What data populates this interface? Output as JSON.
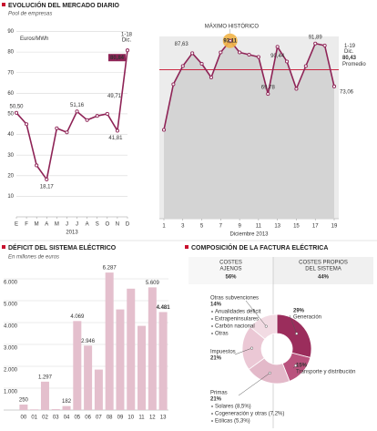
{
  "chart_data": [
    {
      "type": "line",
      "title": "EVOLUCIÓN DEL MERCADO DIARIO",
      "subtitle": "Pool de empresas",
      "ylabel": "Euros/MWh",
      "xlabel": "2013",
      "categories": [
        "E",
        "F",
        "M",
        "A",
        "M",
        "J",
        "J",
        "A",
        "S",
        "O",
        "N",
        "D"
      ],
      "values": [
        50.5,
        45,
        25,
        18.17,
        43,
        41,
        51.16,
        47,
        49,
        50,
        41.81,
        80.84
      ],
      "value_labels": [
        "50,50",
        null,
        null,
        "18,17",
        null,
        null,
        "51,16",
        null,
        null,
        null,
        "41,81",
        "80,84"
      ],
      "color": "#8e2356",
      "ylim": [
        0,
        92
      ],
      "yticks": [
        10,
        20,
        30,
        40,
        50,
        60,
        70,
        80,
        90
      ],
      "grid": true,
      "note": [
        "1-18",
        "Dic."
      ],
      "average": {
        "value": 49.71,
        "label": "49,71"
      }
    },
    {
      "type": "line",
      "xlabel": "Diciembre 2013",
      "x": [
        1,
        2,
        3,
        4,
        5,
        6,
        7,
        8,
        9,
        10,
        11,
        12,
        13,
        14,
        15,
        16,
        17,
        18,
        19
      ],
      "values": [
        54,
        74,
        82,
        87.63,
        83,
        77,
        88,
        93.11,
        88,
        87,
        86,
        69.78,
        90.44,
        84,
        72,
        82,
        91.89,
        91,
        73.06
      ],
      "value_labels": [
        null,
        null,
        null,
        "87,63",
        null,
        null,
        null,
        "93,11",
        null,
        null,
        null,
        "69,78",
        "90,44",
        null,
        null,
        null,
        "91,89",
        null,
        "73,06"
      ],
      "color": "#8e2356",
      "area": true,
      "xlim": [
        1,
        19
      ],
      "ylim": [
        15,
        95
      ],
      "xticks": [
        1,
        3,
        5,
        7,
        9,
        11,
        13,
        15,
        17,
        19
      ],
      "highlight": {
        "index": 7,
        "label": "MÁXIMO HISTÓRICO",
        "color": "#f2b447"
      },
      "average": {
        "value": 80.43,
        "label": "80,43",
        "note": [
          "1-19",
          "Dic."
        ],
        "name": "Promedio",
        "color": "#c8102e"
      }
    },
    {
      "type": "bar",
      "title": "DÉFICIT DEL SISTEMA ELÉCTRICO",
      "subtitle": "En millones de euros",
      "categories": [
        "00",
        "01",
        "02",
        "03",
        "04",
        "05",
        "06",
        "07",
        "08",
        "09",
        "10",
        "11",
        "12",
        "13"
      ],
      "values": [
        250,
        30,
        1297,
        40,
        182,
        4069,
        2946,
        1850,
        6287,
        4600,
        5550,
        3850,
        5609,
        4481
      ],
      "value_labels": [
        "250",
        null,
        "1.297",
        null,
        "182",
        "4.069",
        "2.946",
        null,
        "6.287",
        null,
        null,
        null,
        "5.609",
        "4.481"
      ],
      "color": "#e4bfcd",
      "ylim": [
        0,
        6400
      ],
      "yticks": [
        {
          "value": 1000,
          "label": "1.000"
        },
        {
          "value": 2000,
          "label": "2.000"
        },
        {
          "value": 3000,
          "label": "3.000"
        },
        {
          "value": 4000,
          "label": "4.000"
        },
        {
          "value": 5000,
          "label": "5.000"
        },
        {
          "value": 6000,
          "label": "6.000"
        }
      ],
      "grid": true,
      "emphasis_index": 13
    },
    {
      "type": "pie",
      "title": "COMPOSICIÓN DE LA FACTURA ELÉCTRICA",
      "donut": true,
      "categories": [
        "Generación",
        "Transporte y distribución",
        "Primas",
        "Impuestos",
        "Otras subvenciones"
      ],
      "values": [
        29,
        15,
        21,
        21,
        14
      ],
      "value_labels": [
        "29%",
        "15%",
        "21%",
        "21%",
        "14%"
      ],
      "colors": [
        "#9b2d5c",
        "#b9527d",
        "#e3b9c9",
        "#ebc8d5",
        "#f2dbe3"
      ],
      "bullets": [
        null,
        null,
        [
          "Solares (8,5%)",
          "Cogeneración y otras (7,2%)",
          "Eólicas (5,3%)"
        ],
        null,
        [
          "Anualidades déficit",
          "Extrapeninsulares",
          "Carbón nacional",
          "Otras"
        ]
      ],
      "groups": [
        {
          "name": [
            "COSTES",
            "AJENOS"
          ],
          "value": 56,
          "label": "56%"
        },
        {
          "name": [
            "COSTES PROPIOS",
            "DEL SISTEMA"
          ],
          "value": 44,
          "label": "44%"
        }
      ]
    }
  ]
}
